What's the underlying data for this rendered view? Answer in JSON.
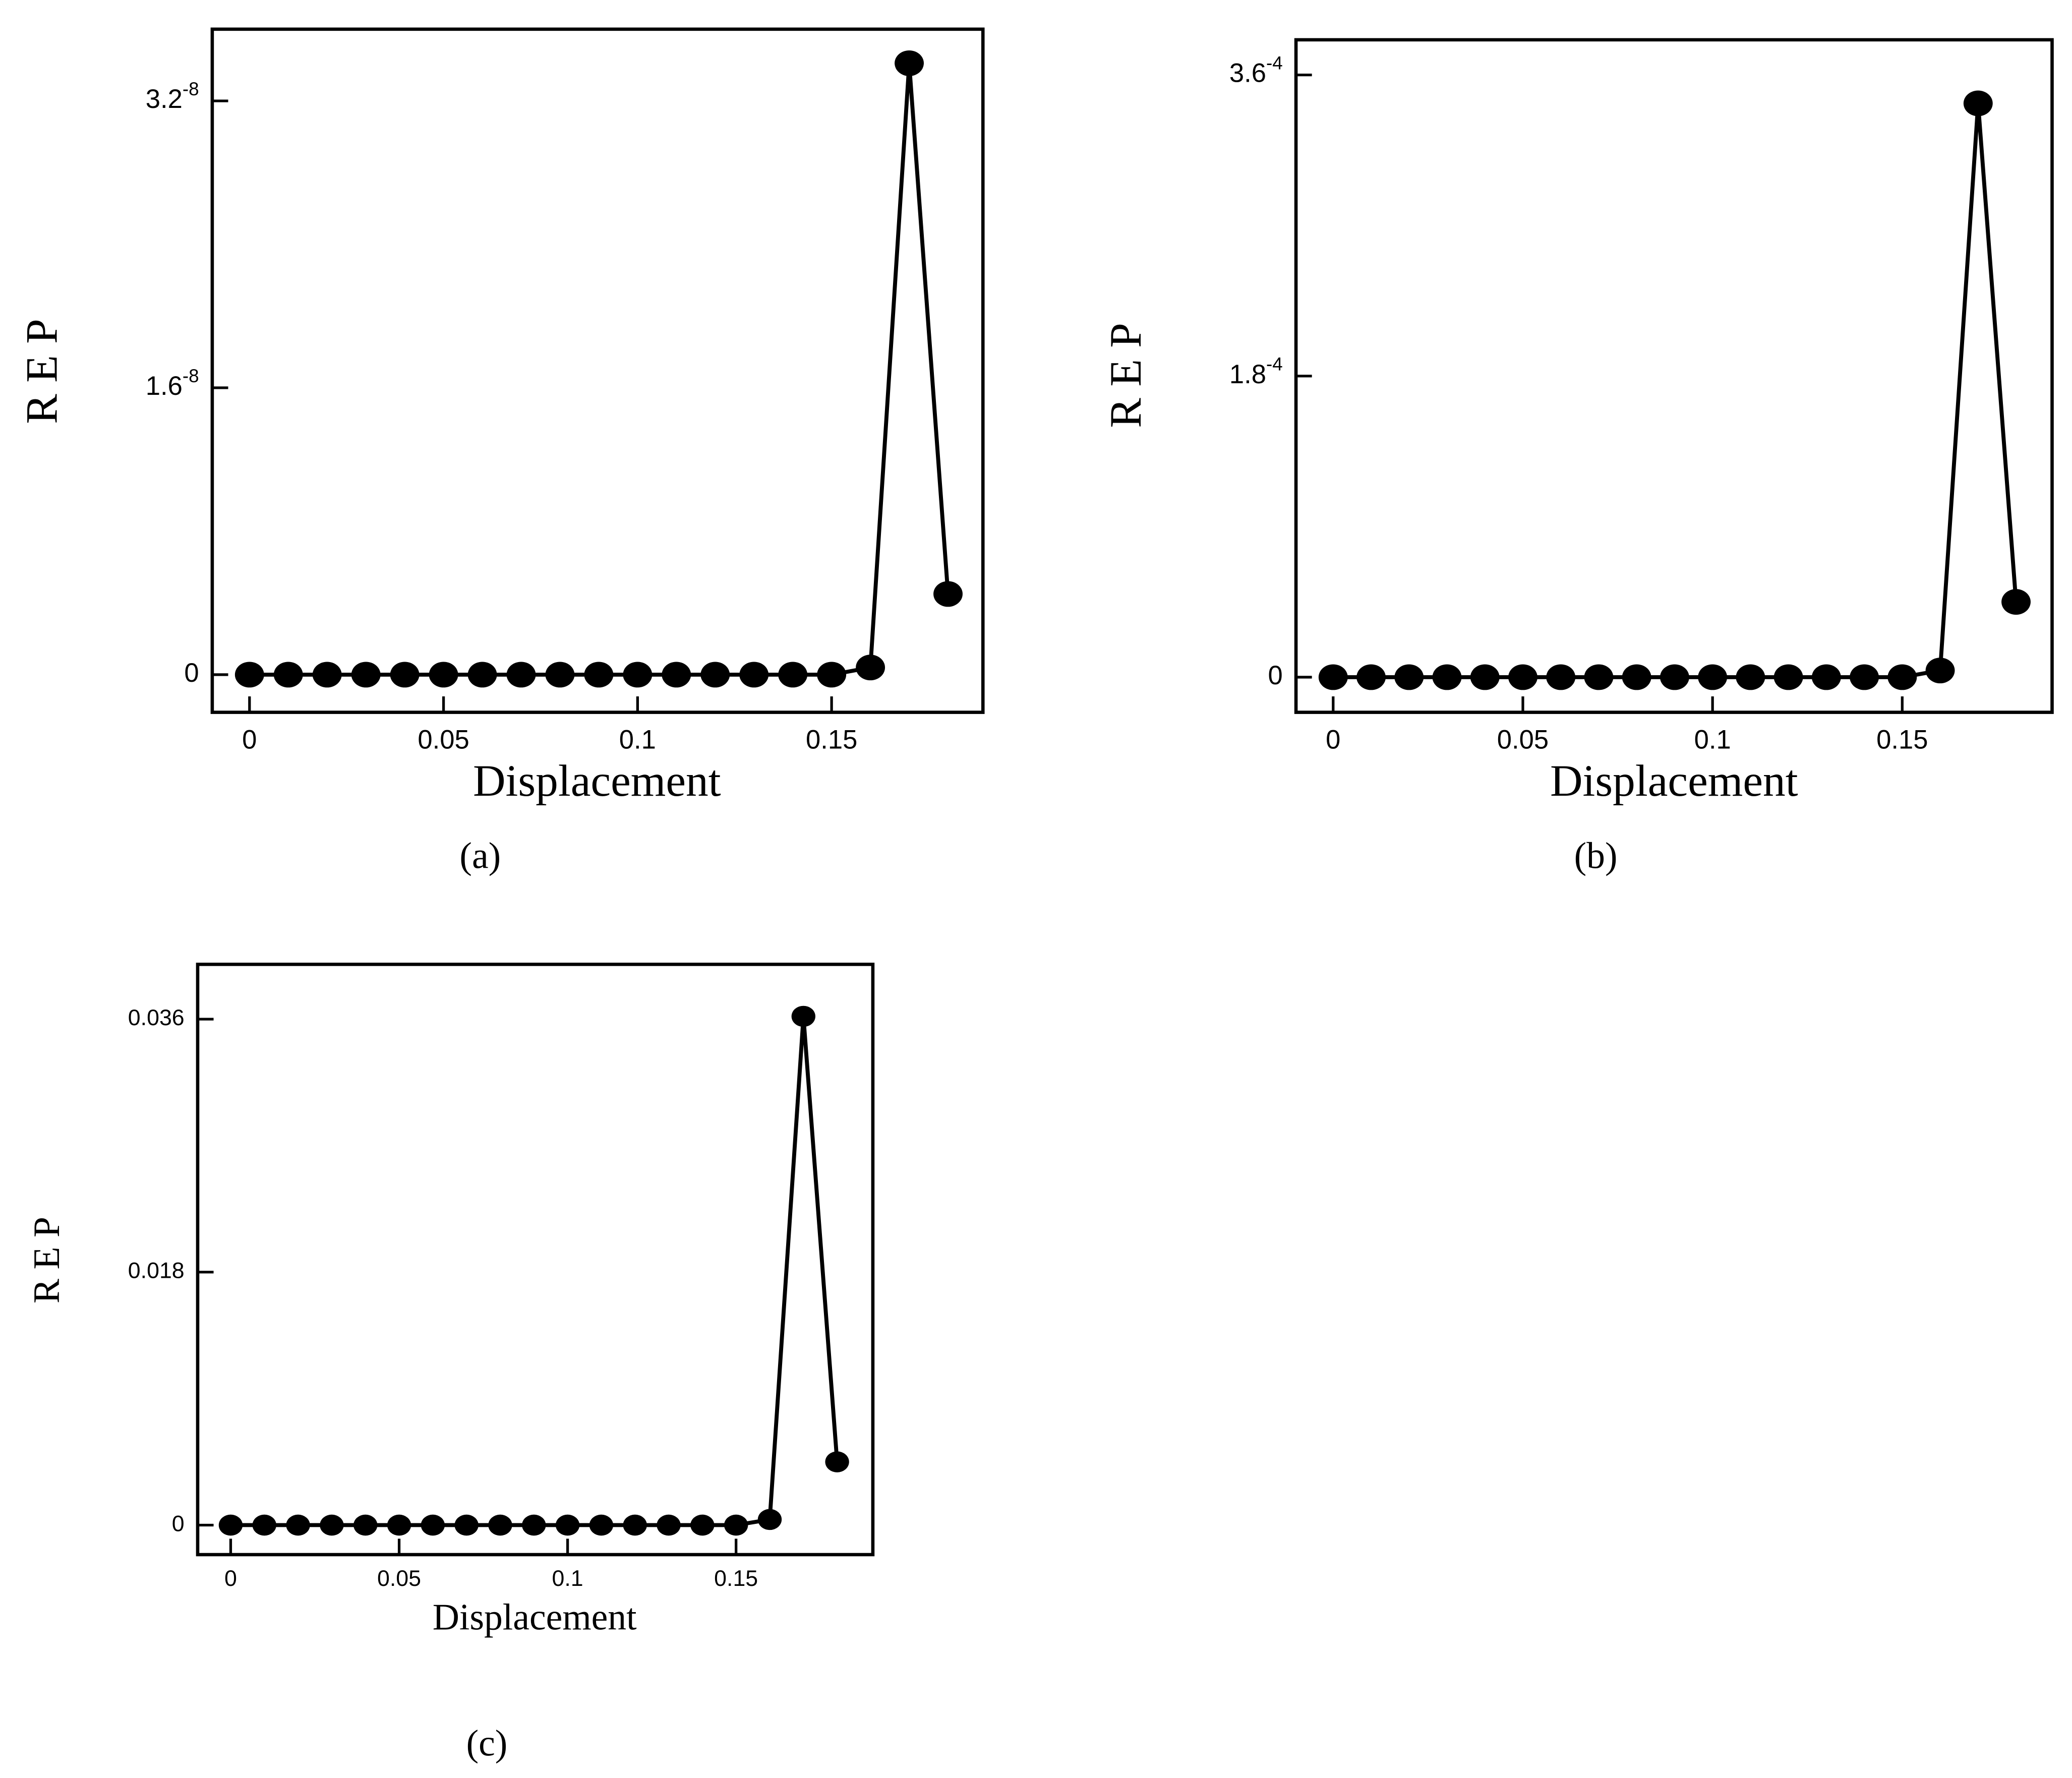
{
  "chart_data": [
    {
      "type": "line",
      "caption": "(a)",
      "xlabel": "Displacement",
      "ylabel": "R E P",
      "x": [
        0,
        0.01,
        0.02,
        0.03,
        0.04,
        0.05,
        0.06,
        0.07,
        0.08,
        0.09,
        0.1,
        0.11,
        0.12,
        0.13,
        0.14,
        0.15,
        0.16,
        0.17,
        0.18
      ],
      "values": [
        0,
        0,
        0,
        0,
        0,
        0,
        0,
        0,
        0,
        0,
        0,
        0,
        0,
        0,
        0,
        0,
        4e-10,
        3.41e-08,
        4.5e-09
      ],
      "color": "#000000",
      "xlim": [
        -0.0096,
        0.189
      ],
      "xticks": [
        0,
        0.05,
        0.1,
        0.15
      ],
      "ylim": [
        -2.1e-09,
        3.6e-08
      ],
      "yticks": [
        0,
        {
          "value": 1.6e-08,
          "label": "1.6",
          "superscript": "-8"
        },
        {
          "value": 3.2e-08,
          "label": "3.2",
          "superscript": "-8"
        }
      ]
    },
    {
      "type": "line",
      "caption": "(b)",
      "xlabel": "Displacement",
      "ylabel": "R E P",
      "x": [
        0,
        0.01,
        0.02,
        0.03,
        0.04,
        0.05,
        0.06,
        0.07,
        0.08,
        0.09,
        0.1,
        0.11,
        0.12,
        0.13,
        0.14,
        0.15,
        0.16,
        0.17,
        0.18
      ],
      "values": [
        0,
        0,
        0,
        0,
        0,
        0,
        0,
        0,
        0,
        0,
        0,
        0,
        0,
        0,
        0,
        0,
        4e-06,
        0.000343,
        4.5e-05
      ],
      "color": "#000000",
      "xlim": [
        -0.0098,
        0.1895
      ],
      "xticks": [
        0,
        0.05,
        0.1,
        0.15
      ],
      "ylim": [
        -2.1e-05,
        0.000381
      ],
      "yticks": [
        0,
        {
          "value": 0.00018,
          "label": "1.8",
          "superscript": "-4"
        },
        {
          "value": 0.00036,
          "label": "3.6",
          "superscript": "-4"
        }
      ]
    },
    {
      "type": "line",
      "caption": "(c)",
      "xlabel": "Displacement",
      "ylabel": "R E P",
      "x": [
        0,
        0.01,
        0.02,
        0.03,
        0.04,
        0.05,
        0.06,
        0.07,
        0.08,
        0.09,
        0.1,
        0.11,
        0.12,
        0.13,
        0.14,
        0.15,
        0.16,
        0.17,
        0.18
      ],
      "values": [
        0,
        0,
        0,
        0,
        0,
        0,
        0,
        0,
        0,
        0,
        0,
        0,
        0,
        0,
        0,
        0,
        0.0004,
        0.0362,
        0.0045
      ],
      "color": "#000000",
      "xlim": [
        -0.0098,
        0.1906
      ],
      "xticks": [
        0,
        0.05,
        0.1,
        0.15
      ],
      "ylim": [
        -0.0021,
        0.0399
      ],
      "yticks": [
        0,
        0.018,
        0.036
      ]
    }
  ]
}
